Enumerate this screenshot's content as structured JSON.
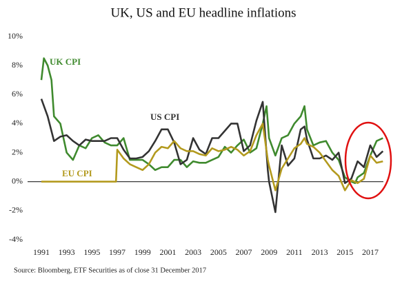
{
  "chart_data": {
    "type": "line",
    "title": "UK, US and EU headline inflations",
    "annotations": [
      "UK CPI",
      "US CPI",
      "EU CPI"
    ],
    "source": "Source: Bloomberg, ETF Securities as of close 31 December 2017",
    "xlim": [
      1990.5,
      2018.5
    ],
    "xticks": [
      1991,
      1993,
      1995,
      1997,
      1999,
      2001,
      2003,
      2005,
      2007,
      2009,
      2011,
      2013,
      2015,
      2017
    ],
    "ylim": [
      -4,
      10
    ],
    "yticks": [
      {
        "value": -4,
        "label": "-4%"
      },
      {
        "value": -2,
        "label": "-2%"
      },
      {
        "value": 0,
        "label": "0%"
      },
      {
        "value": 2,
        "label": "2%"
      },
      {
        "value": 4,
        "label": "4%"
      },
      {
        "value": 6,
        "label": "6%"
      },
      {
        "value": 8,
        "label": "8%"
      },
      {
        "value": 10,
        "label": "10%"
      }
    ],
    "series": [
      {
        "name": "UK CPI",
        "color": "#3f8a2e",
        "x": [
          1991,
          1991.2,
          1991.5,
          1991.8,
          1992,
          1992.5,
          1993,
          1993.5,
          1994,
          1994.5,
          1995,
          1995.5,
          1996,
          1996.5,
          1997,
          1997.5,
          1998,
          1998.5,
          1999,
          1999.5,
          2000,
          2000.5,
          2001,
          2001.5,
          2002,
          2002.5,
          2003,
          2003.5,
          2004,
          2004.5,
          2005,
          2005.5,
          2006,
          2006.5,
          2007,
          2007.5,
          2008,
          2008.5,
          2008.8,
          2009,
          2009.5,
          2010,
          2010.5,
          2011,
          2011.5,
          2011.8,
          2012,
          2012.5,
          2013,
          2013.5,
          2014,
          2014.5,
          2015,
          2015.5,
          2015.8,
          2016,
          2016.5,
          2017,
          2017.5,
          2018
        ],
        "values": [
          7,
          8.5,
          8,
          7,
          4.5,
          4,
          2,
          1.5,
          2.5,
          2.3,
          3,
          3.2,
          2.7,
          2.5,
          2.5,
          3,
          1.5,
          1.5,
          1.5,
          1.2,
          0.8,
          1,
          1,
          1.5,
          1.5,
          1,
          1.4,
          1.3,
          1.3,
          1.5,
          1.7,
          2.4,
          2,
          2.5,
          2.9,
          2,
          2.3,
          4,
          5.2,
          3,
          1.8,
          3,
          3.2,
          4,
          4.5,
          5.2,
          3.6,
          2.5,
          2.7,
          2.8,
          2,
          1.5,
          0.3,
          0,
          -0.1,
          0.3,
          0.6,
          1.8,
          2.8,
          3
        ]
      },
      {
        "name": "US CPI",
        "color": "#333333",
        "x": [
          1991,
          1991.5,
          1992,
          1992.5,
          1993,
          1993.5,
          1994,
          1994.5,
          1995,
          1995.5,
          1996,
          1996.5,
          1997,
          1997.5,
          1998,
          1998.5,
          1999,
          1999.5,
          2000,
          2000.5,
          2001,
          2001.5,
          2002,
          2002.5,
          2003,
          2003.5,
          2004,
          2004.5,
          2005,
          2005.5,
          2006,
          2006.5,
          2007,
          2007.5,
          2008,
          2008.5,
          2008.9,
          2009,
          2009.5,
          2010,
          2010.5,
          2011,
          2011.5,
          2011.8,
          2012,
          2012.5,
          2013,
          2013.5,
          2014,
          2014.5,
          2015,
          2015.5,
          2016,
          2016.5,
          2017,
          2017.5,
          2018
        ],
        "values": [
          5.7,
          4.5,
          2.8,
          3.1,
          3.2,
          2.8,
          2.5,
          2.9,
          2.8,
          2.8,
          2.8,
          3,
          3,
          2.2,
          1.6,
          1.6,
          1.7,
          2.1,
          2.8,
          3.6,
          3.6,
          2.7,
          1.2,
          1.5,
          3,
          2.2,
          1.9,
          3,
          3,
          3.5,
          4,
          4,
          2.1,
          2.5,
          4.2,
          5.5,
          0.8,
          0,
          -2.1,
          2.5,
          1.1,
          1.6,
          3.6,
          3.8,
          2.9,
          1.6,
          1.6,
          1.8,
          1.5,
          2,
          -0.1,
          0.2,
          1.4,
          1,
          2.5,
          1.7,
          2.1
        ]
      },
      {
        "name": "EU CPI",
        "color": "#b39a1e",
        "x": [
          1991,
          1996.9,
          1997,
          1997.5,
          1998,
          1998.5,
          1999,
          1999.5,
          2000,
          2000.5,
          2001,
          2001.5,
          2002,
          2002.5,
          2003,
          2003.5,
          2004,
          2004.5,
          2005,
          2005.5,
          2006,
          2006.5,
          2007,
          2007.5,
          2008,
          2008.5,
          2008.9,
          2009,
          2009.5,
          2010,
          2010.5,
          2011,
          2011.5,
          2011.8,
          2012,
          2012.5,
          2013,
          2013.5,
          2014,
          2014.5,
          2015,
          2015.5,
          2016,
          2016.5,
          2017,
          2017.5,
          2018
        ],
        "values": [
          0,
          0,
          2.2,
          1.6,
          1.2,
          1,
          0.8,
          1.2,
          2,
          2.4,
          2.3,
          2.8,
          2.3,
          2.1,
          2.1,
          1.9,
          1.8,
          2.3,
          2.1,
          2.2,
          2.4,
          2.2,
          1.8,
          2.1,
          3.2,
          4,
          1.5,
          1.1,
          -0.6,
          0.9,
          1.6,
          2.3,
          2.6,
          3,
          2.6,
          2.4,
          2,
          1.4,
          0.8,
          0.4,
          -0.6,
          0.1,
          -0.1,
          0.2,
          1.8,
          1.3,
          1.4
        ]
      }
    ]
  }
}
